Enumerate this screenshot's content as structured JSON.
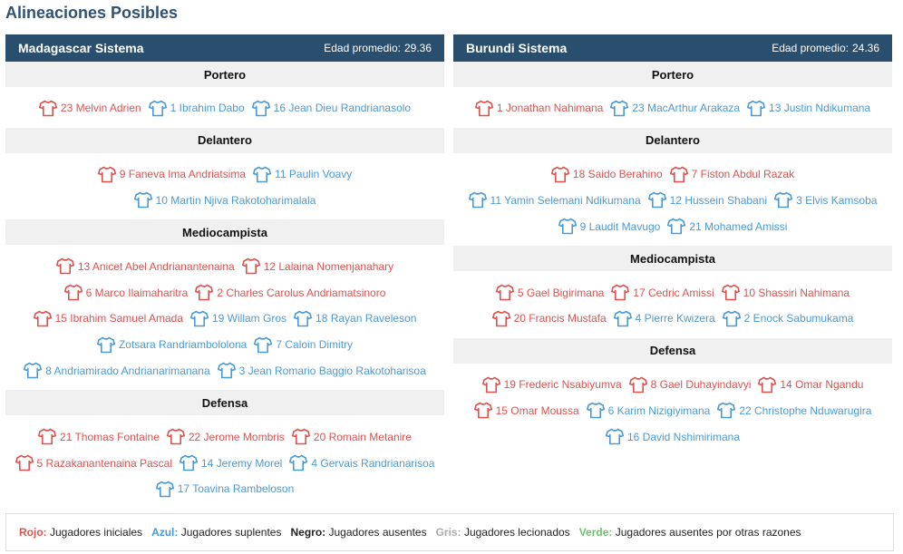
{
  "title": "Alineaciones Posibles",
  "teams": [
    {
      "name": "Madagascar Sistema",
      "age_label": "Edad promedio:",
      "age_value": "29.36",
      "sections": [
        {
          "label": "Portero",
          "rows": [
            [
              {
                "name": "23 Melvin Adrien",
                "color": "red"
              },
              {
                "name": "1 Ibrahim Dabo",
                "color": "blue"
              },
              {
                "name": "16 Jean Dieu Randrianasolo",
                "color": "blue"
              }
            ]
          ]
        },
        {
          "label": "Delantero",
          "rows": [
            [
              {
                "name": "9 Faneva Ima Andriatsima",
                "color": "red"
              },
              {
                "name": "11 Paulin Voavy",
                "color": "blue"
              }
            ],
            [
              {
                "name": "10 Martin Njiva Rakotoharimalala",
                "color": "blue"
              }
            ]
          ]
        },
        {
          "label": "Mediocampista",
          "rows": [
            [
              {
                "name": "13 Anicet Abel Andrianantenaina",
                "color": "red"
              },
              {
                "name": "12 Lalaina Nomenjanahary",
                "color": "red"
              }
            ],
            [
              {
                "name": "6 Marco Ilaimaharitra",
                "color": "red"
              },
              {
                "name": "2 Charles Carolus Andriamatsinoro",
                "color": "red"
              }
            ],
            [
              {
                "name": "15 Ibrahim Samuel Amada",
                "color": "red"
              },
              {
                "name": "19 Willam Gros",
                "color": "blue"
              },
              {
                "name": "18 Rayan Raveleson",
                "color": "blue"
              }
            ],
            [
              {
                "name": "Zotsara Randriambololona",
                "color": "blue"
              },
              {
                "name": "7 Caloin Dimitry",
                "color": "blue"
              }
            ],
            [
              {
                "name": "8 Andriamirado Andrianarimanana",
                "color": "blue"
              },
              {
                "name": "3 Jean Romario Baggio Rakotoharisoa",
                "color": "blue"
              }
            ]
          ]
        },
        {
          "label": "Defensa",
          "rows": [
            [
              {
                "name": "21 Thomas Fontaine",
                "color": "red"
              },
              {
                "name": "22 Jerome Mombris",
                "color": "red"
              },
              {
                "name": "20 Romain Metanire",
                "color": "red"
              }
            ],
            [
              {
                "name": "5 Razakanantenaina Pascal",
                "color": "red"
              },
              {
                "name": "14 Jeremy Morel",
                "color": "blue"
              },
              {
                "name": "4 Gervais Randrianarisoa",
                "color": "blue"
              }
            ],
            [
              {
                "name": "17 Toavina Rambeloson",
                "color": "blue"
              }
            ]
          ]
        }
      ]
    },
    {
      "name": "Burundi Sistema",
      "age_label": "Edad promedio:",
      "age_value": "24.36",
      "sections": [
        {
          "label": "Portero",
          "rows": [
            [
              {
                "name": "1 Jonathan Nahimana",
                "color": "red"
              },
              {
                "name": "23 MacArthur Arakaza",
                "color": "blue"
              },
              {
                "name": "13 Justin Ndikumana",
                "color": "blue"
              }
            ]
          ]
        },
        {
          "label": "Delantero",
          "rows": [
            [
              {
                "name": "18 Saido Berahino",
                "color": "red"
              },
              {
                "name": "7 Fiston Abdul Razak",
                "color": "red"
              }
            ],
            [
              {
                "name": "11 Yamin Selemani Ndikumana",
                "color": "blue"
              },
              {
                "name": "12 Hussein Shabani",
                "color": "blue"
              },
              {
                "name": "3 Elvis Kamsoba",
                "color": "blue"
              }
            ],
            [
              {
                "name": "9 Laudit Mavugo",
                "color": "blue"
              },
              {
                "name": "21 Mohamed Amissi",
                "color": "blue"
              }
            ]
          ]
        },
        {
          "label": "Mediocampista",
          "rows": [
            [
              {
                "name": "5 Gael Bigirimana",
                "color": "red"
              },
              {
                "name": "17 Cedric Amissi",
                "color": "red"
              },
              {
                "name": "10 Shassiri Nahimana",
                "color": "red"
              }
            ],
            [
              {
                "name": "20 Francis Mustafa",
                "color": "red"
              },
              {
                "name": "4 Pierre Kwizera",
                "color": "blue"
              },
              {
                "name": "2 Enock Sabumukama",
                "color": "blue"
              }
            ]
          ]
        },
        {
          "label": "Defensa",
          "rows": [
            [
              {
                "name": "19 Frederic Nsabiyumva",
                "color": "red"
              },
              {
                "name": "8 Gael Duhayindavyi",
                "color": "red"
              },
              {
                "name": "14 Omar Ngandu",
                "color": "red"
              }
            ],
            [
              {
                "name": "15 Omar Moussa",
                "color": "red"
              },
              {
                "name": "6 Karim Nizigiyimana",
                "color": "blue"
              },
              {
                "name": "22 Christophe Nduwarugira",
                "color": "blue"
              }
            ],
            [
              {
                "name": "16 David Nshimirimana",
                "color": "blue"
              }
            ]
          ]
        }
      ]
    }
  ],
  "legend": [
    {
      "key": "Rojo:",
      "text": "Jugadores iniciales",
      "color": "#e0514e"
    },
    {
      "key": "Azul:",
      "text": "Jugadores suplentes",
      "color": "#4a9ad8"
    },
    {
      "key": "Negro:",
      "text": "Jugadores ausentes",
      "color": "#222222"
    },
    {
      "key": "Gris:",
      "text": "Jugadores lecionados",
      "color": "#aaaaaa"
    },
    {
      "key": "Verde:",
      "text": "Jugadores ausentes por otras razones",
      "color": "#6cc46c"
    }
  ],
  "colors": {
    "red": "#e0514e",
    "blue": "#4a9ad8",
    "header_bg": "#2a4f6e"
  }
}
